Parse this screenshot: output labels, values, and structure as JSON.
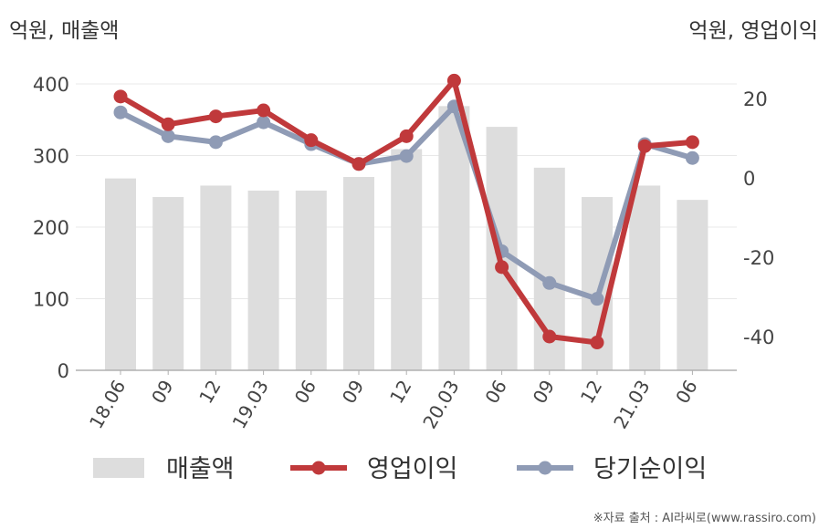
{
  "chart_data": {
    "type": "bar+line",
    "left_axis_unit": "억원, 매출액",
    "right_axis_unit": "억원, 영업이익",
    "categories": [
      "18.06",
      "09",
      "12",
      "19.03",
      "06",
      "09",
      "12",
      "20.03",
      "06",
      "09",
      "12",
      "21.03",
      "06"
    ],
    "y_left": {
      "ticks": [
        "0",
        "100",
        "200",
        "300",
        "400"
      ],
      "range": [
        0,
        400
      ]
    },
    "y_right": {
      "ticks": [
        "20",
        "0",
        "-20",
        "-40"
      ],
      "range": [
        -48,
        28
      ]
    },
    "series": [
      {
        "name": "매출액",
        "type": "bar",
        "axis": "left",
        "color": "#dddddd",
        "values": [
          268,
          242,
          258,
          251,
          251,
          270,
          309,
          369,
          340,
          283,
          242,
          258,
          238
        ]
      },
      {
        "name": "영업이익",
        "type": "line",
        "axis": "right",
        "color": "#c0393b",
        "values": [
          20.5,
          13.5,
          15.5,
          17.0,
          9.5,
          3.5,
          10.5,
          24.5,
          -22.5,
          -40.0,
          -41.5,
          8.0,
          9.0
        ]
      },
      {
        "name": "당기순이익",
        "type": "line",
        "axis": "right",
        "color": "#8f9bb5",
        "values": [
          16.5,
          10.5,
          9.0,
          14.0,
          8.5,
          3.5,
          5.5,
          18.0,
          -18.5,
          -26.5,
          -30.5,
          8.5,
          5.0
        ]
      }
    ],
    "legend_position": "bottom",
    "grid": true
  },
  "source_text": "※자료 출처 : AI라씨로(www.rassiro.com)"
}
